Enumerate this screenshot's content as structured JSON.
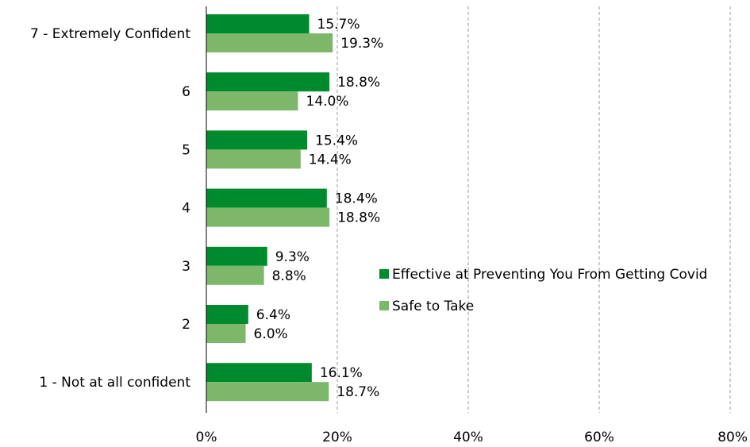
{
  "chart_data": {
    "type": "bar",
    "orientation": "horizontal",
    "categories": [
      "7 - Extremely Confident",
      "6",
      "5",
      "4",
      "3",
      "2",
      "1 - Not at all confident"
    ],
    "series": [
      {
        "name": "Effective at Preventing You From Getting Covid",
        "color": "#008a2e",
        "values": [
          15.7,
          18.8,
          15.4,
          18.4,
          9.3,
          6.4,
          16.1
        ],
        "labels": [
          "15.7%",
          "18.8%",
          "15.4%",
          "18.4%",
          "9.3%",
          "6.4%",
          "16.1%"
        ]
      },
      {
        "name": "Safe to Take",
        "color": "#7db86a",
        "values": [
          19.3,
          14.0,
          14.4,
          18.8,
          8.8,
          6.0,
          18.7
        ],
        "labels": [
          "19.3%",
          "14.0%",
          "14.4%",
          "18.8%",
          "8.8%",
          "6.0%",
          "18.7%"
        ]
      }
    ],
    "xlim": [
      0,
      80
    ],
    "xticks": [
      0,
      20,
      40,
      60,
      80
    ],
    "xtick_labels": [
      "0%",
      "20%",
      "40%",
      "60%",
      "80%"
    ],
    "grid": "vertical dashed",
    "legend_position": "right"
  }
}
